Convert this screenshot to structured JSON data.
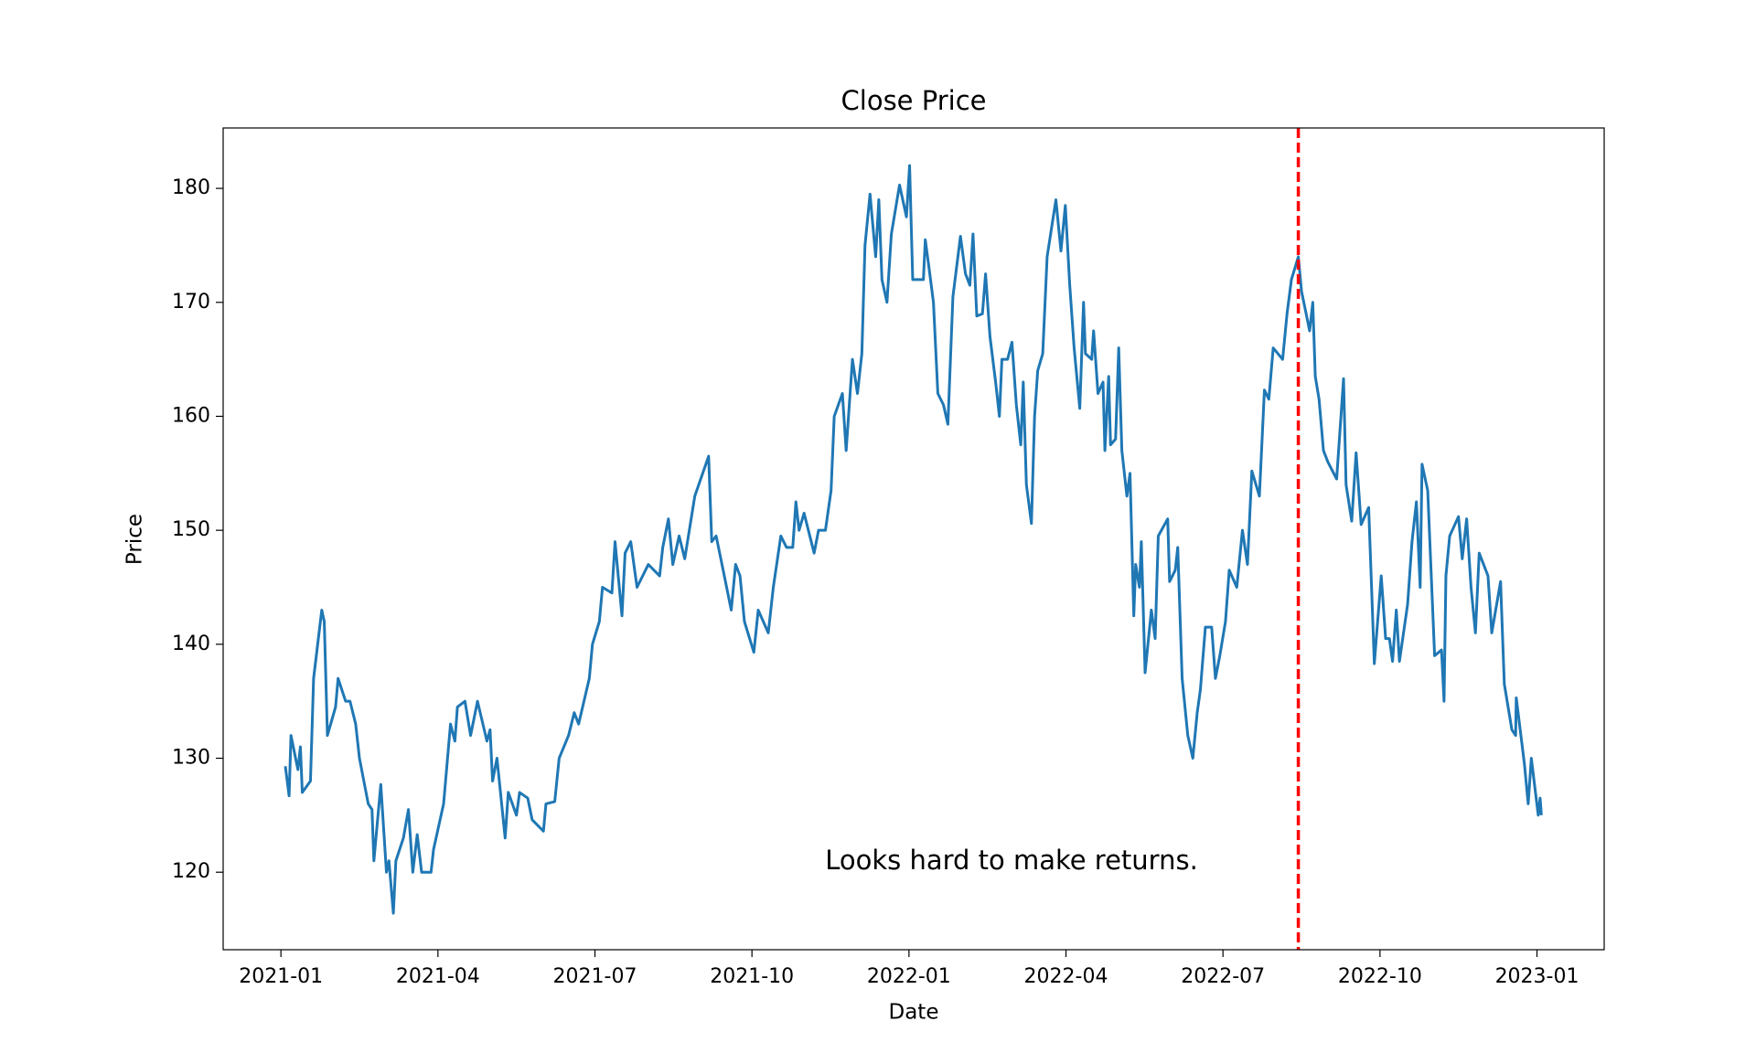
{
  "chart_data": {
    "type": "line",
    "title": "Close Price",
    "xlabel": "Date",
    "ylabel": "Price",
    "color": "#1f77b4",
    "grid": false,
    "x": [
      2021.007,
      2021.013,
      2021.016,
      2021.027,
      2021.031,
      2021.034,
      2021.047,
      2021.052,
      2021.065,
      2021.069,
      2021.074,
      2021.087,
      2021.091,
      2021.103,
      2021.11,
      2021.119,
      2021.125,
      2021.139,
      2021.145,
      2021.148,
      2021.159,
      2021.168,
      2021.172,
      2021.179,
      2021.183,
      2021.195,
      2021.203,
      2021.21,
      2021.217,
      2021.224,
      2021.239,
      2021.243,
      2021.259,
      2021.27,
      2021.277,
      2021.281,
      2021.293,
      2021.302,
      2021.313,
      2021.328,
      2021.333,
      2021.337,
      2021.344,
      2021.357,
      2021.362,
      2021.375,
      2021.38,
      2021.393,
      2021.4,
      2021.418,
      2021.422,
      2021.436,
      2021.443,
      2021.458,
      2021.467,
      2021.474,
      2021.491,
      2021.496,
      2021.507,
      2021.512,
      2021.527,
      2021.532,
      2021.543,
      2021.548,
      2021.557,
      2021.567,
      2021.585,
      2021.603,
      2021.608,
      2021.617,
      2021.624,
      2021.634,
      2021.643,
      2021.659,
      2021.681,
      2021.686,
      2021.693,
      2021.706,
      2021.717,
      2021.724,
      2021.731,
      2021.738,
      2021.753,
      2021.76,
      2021.776,
      2021.784,
      2021.796,
      2021.805,
      2021.815,
      2021.82,
      2021.825,
      2021.833,
      2021.849,
      2021.856,
      2021.867,
      2021.876,
      2021.881,
      2021.894,
      2021.9,
      2021.91,
      2021.918,
      2021.925,
      2021.93,
      2021.938,
      2021.947,
      2021.952,
      2021.957,
      2021.965,
      2021.972,
      2021.985,
      2021.996,
      2022.001,
      2022.006,
      2022.023,
      2022.026,
      2022.032,
      2022.039,
      2022.046,
      2022.055,
      2022.062,
      2022.07,
      2022.082,
      2022.09,
      2022.097,
      2022.102,
      2022.108,
      2022.117,
      2022.122,
      2022.129,
      2022.138,
      2022.144,
      2022.148,
      2022.157,
      2022.164,
      2022.171,
      2022.178,
      2022.182,
      2022.187,
      2022.195,
      2022.2,
      2022.205,
      2022.213,
      2022.22,
      2022.234,
      2022.242,
      2022.249,
      2022.256,
      2022.263,
      2022.272,
      2022.278,
      2022.281,
      2022.291,
      2022.294,
      2022.301,
      2022.309,
      2022.312,
      2022.318,
      2022.321,
      2022.329,
      2022.334,
      2022.339,
      2022.347,
      2022.352,
      2022.358,
      2022.361,
      2022.367,
      2022.37,
      2022.376,
      2022.386,
      2022.392,
      2022.397,
      2022.412,
      2022.415,
      2022.424,
      2022.428,
      2022.435,
      2022.444,
      2022.452,
      2022.459,
      2022.464,
      2022.472,
      2022.482,
      2022.488,
      2022.495,
      2022.504,
      2022.51,
      2022.522,
      2022.531,
      2022.539,
      2022.546,
      2022.558,
      2022.566,
      2022.573,
      2022.58,
      2022.595,
      2022.602,
      2022.609,
      2022.62,
      2022.625,
      2022.638,
      2022.643,
      2022.647,
      2022.653,
      2022.66,
      2022.667,
      2022.681,
      2022.692,
      2022.696,
      2022.705,
      2022.712,
      2022.72,
      2022.732,
      2022.741,
      2022.752,
      2022.759,
      2022.765,
      2022.77,
      2022.776,
      2022.781,
      2022.794,
      2022.801,
      2022.808,
      2022.814,
      2022.817,
      2022.826,
      2022.837,
      2022.848,
      2022.852,
      2022.855,
      2022.861,
      2022.875,
      2022.881,
      2022.888,
      2022.895,
      2022.902,
      2022.908,
      2022.922,
      2022.928,
      2022.942,
      2022.948,
      2022.96,
      2022.966,
      2022.967,
      2022.98,
      2022.986,
      2022.991,
      2023.002,
      2023.005,
      2023.007
    ],
    "values": [
      129.3,
      126.7,
      132,
      129,
      131,
      127,
      128,
      137,
      143,
      142,
      132,
      134.5,
      137,
      135,
      135,
      133,
      130,
      126,
      125.5,
      121,
      127.7,
      120,
      121,
      116.4,
      121,
      123,
      125.5,
      120,
      123.3,
      120,
      120,
      122,
      126,
      133,
      131.5,
      134.5,
      135,
      132,
      135,
      131.5,
      132.5,
      128,
      130,
      123,
      127,
      125,
      127,
      126.5,
      124.6,
      123.6,
      126,
      126.2,
      130,
      132,
      134,
      133,
      137,
      140,
      142,
      145,
      144.5,
      149,
      142.5,
      148,
      149,
      145,
      147,
      146,
      148.5,
      151,
      147,
      149.5,
      147.5,
      153,
      156.5,
      149,
      149.5,
      146,
      143,
      147,
      146,
      142,
      139.3,
      143,
      141,
      145,
      149.5,
      148.5,
      148.5,
      152.5,
      150,
      151.5,
      148,
      150,
      150,
      153.5,
      160,
      162,
      157,
      165,
      162,
      165.5,
      175,
      179.5,
      174,
      179,
      172,
      170,
      176,
      180.3,
      177.5,
      182,
      172,
      172,
      175.5,
      173,
      170,
      162,
      161,
      159.3,
      170.5,
      175.8,
      172.5,
      171.5,
      176,
      168.8,
      169,
      172.5,
      167,
      163,
      160,
      165,
      165,
      166.5,
      161,
      157.5,
      163,
      154,
      150.6,
      160,
      164,
      165.5,
      174,
      179,
      174.5,
      178.5,
      171.5,
      166,
      160.7,
      170,
      165.5,
      165,
      167.5,
      162,
      163,
      157,
      163.5,
      157.5,
      158,
      166,
      157,
      153,
      155,
      142.5,
      147,
      145,
      149,
      137.5,
      143,
      140.5,
      149.5,
      151,
      145.5,
      146.5,
      148.5,
      137,
      132,
      130,
      134,
      136,
      141.5,
      141.5,
      137,
      139,
      142,
      146.5,
      145,
      150,
      147,
      155.2,
      153,
      162.3,
      161.5,
      166,
      165,
      169,
      172,
      174,
      171,
      167.5,
      170,
      163.5,
      161.5,
      157,
      156,
      154.5,
      163.3,
      154,
      150.8,
      156.8,
      150.5,
      152,
      138.3,
      146,
      140.5,
      140.5,
      138.5,
      143,
      138.5,
      143.5,
      149,
      152.5,
      145,
      155.8,
      153.5,
      139,
      139.5,
      135,
      146,
      149.5,
      151.2,
      147.5,
      151,
      145,
      141,
      148,
      146,
      141,
      145.5,
      136.5,
      132.5,
      132,
      135.3,
      129.5,
      126,
      130,
      125,
      126.5,
      125
    ],
    "xlim": [
      2020.908,
      2023.107
    ],
    "xticks": [
      {
        "value": 2021,
        "label": "2021-01"
      },
      {
        "value": 2021.25,
        "label": "2021-04"
      },
      {
        "value": 2021.5,
        "label": "2021-07"
      },
      {
        "value": 2021.75,
        "label": "2021-10"
      },
      {
        "value": 2022,
        "label": "2022-01"
      },
      {
        "value": 2022.25,
        "label": "2022-04"
      },
      {
        "value": 2022.5,
        "label": "2022-07"
      },
      {
        "value": 2022.75,
        "label": "2022-10"
      },
      {
        "value": 2023,
        "label": "2023-01"
      }
    ],
    "ylim": [
      113.2,
      185.3
    ],
    "yticks": [
      120,
      130,
      140,
      150,
      160,
      170,
      180
    ],
    "reference_line": {
      "x": 2022.62,
      "color": "red",
      "style": "dashed"
    },
    "annotation": "Looks hard to make returns."
  }
}
